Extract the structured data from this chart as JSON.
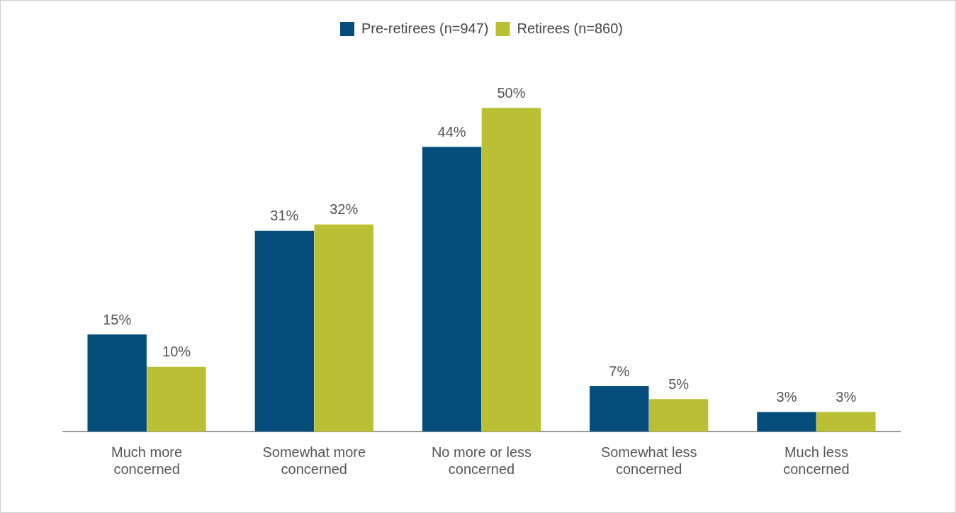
{
  "chart_data": {
    "type": "bar",
    "categories": [
      "Much more concerned",
      "Somewhat more concerned",
      "No more or less concerned",
      "Somewhat less concerned",
      "Much less concerned"
    ],
    "series": [
      {
        "name": "Pre-retirees (n=947)",
        "color": "#054e7c",
        "values": [
          15,
          31,
          44,
          7,
          3
        ],
        "value_labels": [
          "15%",
          "31%",
          "44%",
          "7%",
          "3%"
        ]
      },
      {
        "name": "Retirees (n=860)",
        "color": "#bbbf33",
        "values": [
          10,
          32,
          50,
          5,
          3
        ],
        "value_labels": [
          "10%",
          "32%",
          "50%",
          "5%",
          "3%"
        ]
      }
    ],
    "legend": "top",
    "grid": false
  }
}
